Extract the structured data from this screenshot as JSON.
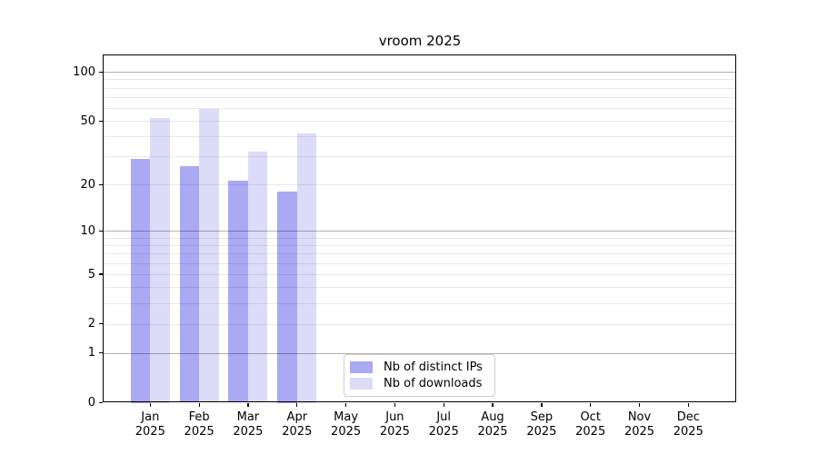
{
  "title": "vroom 2025",
  "chart_data": {
    "type": "bar",
    "title": "vroom 2025",
    "categories": [
      "Jan 2025",
      "Feb 2025",
      "Mar 2025",
      "Apr 2025",
      "May 2025",
      "Jun 2025",
      "Jul 2025",
      "Aug 2025",
      "Sep 2025",
      "Oct 2025",
      "Nov 2025",
      "Dec 2025"
    ],
    "series": [
      {
        "name": "Nb of distinct IPs",
        "color": "#a9a9f4",
        "values": [
          29,
          26,
          21,
          18,
          null,
          null,
          null,
          null,
          null,
          null,
          null,
          null
        ]
      },
      {
        "name": "Nb of downloads",
        "color": "#dcdcf8",
        "values": [
          52,
          59,
          32,
          42,
          null,
          null,
          null,
          null,
          null,
          null,
          null,
          null
        ]
      }
    ],
    "xlabel": "",
    "ylabel": "",
    "yscale": "log1p",
    "ylim": [
      0,
      127
    ],
    "yticks": [
      0,
      1,
      2,
      5,
      10,
      20,
      50,
      100
    ],
    "major_gridlines": [
      1,
      10,
      100
    ],
    "minor_gridlines": [
      2,
      3,
      4,
      5,
      6,
      7,
      8,
      9,
      20,
      30,
      40,
      50,
      60,
      70,
      80,
      90
    ],
    "grid": "on",
    "legend_position": "bottom-center-inside",
    "axis_color": "#000000",
    "background_color": "#ffffff"
  }
}
